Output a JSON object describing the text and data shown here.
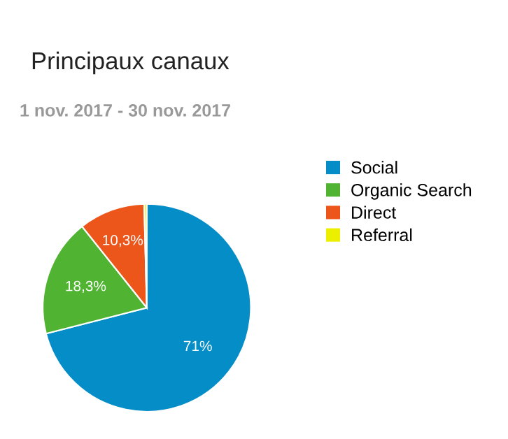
{
  "chart_data": {
    "type": "pie",
    "title": "Principaux canaux",
    "subtitle": "1 nov. 2017 - 30 nov. 2017",
    "categories": [
      "Social",
      "Organic Search",
      "Direct",
      "Referral"
    ],
    "values": [
      71,
      18.3,
      10.3,
      0.4
    ],
    "colors": [
      "#058dc7",
      "#50b432",
      "#ed561b",
      "#edef00"
    ],
    "value_labels": [
      "71%",
      "18,3%",
      "10,3%",
      null
    ],
    "legend": "right"
  }
}
